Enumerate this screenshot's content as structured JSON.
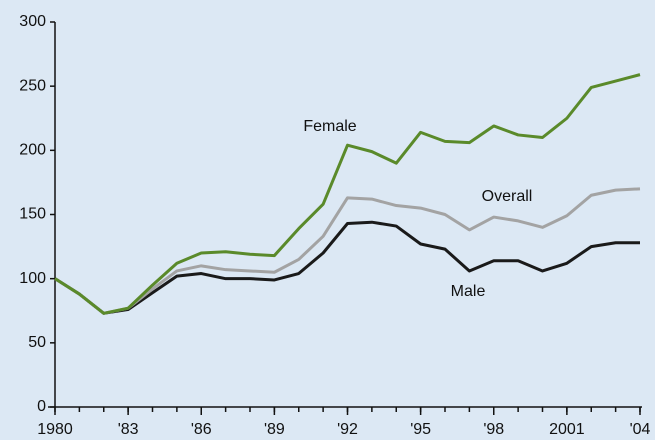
{
  "chart_data": {
    "type": "line",
    "x": [
      1980,
      1981,
      1982,
      1983,
      1984,
      1985,
      1986,
      1987,
      1988,
      1989,
      1990,
      1991,
      1992,
      1993,
      1994,
      1995,
      1996,
      1997,
      1998,
      1999,
      2000,
      2001,
      2002,
      2003,
      2004
    ],
    "series": [
      {
        "name": "Female",
        "color": "#5a8a2a",
        "values": [
          100,
          88,
          73,
          77,
          95,
          112,
          120,
          121,
          119,
          118,
          139,
          158,
          204,
          199,
          190,
          214,
          207,
          206,
          219,
          212,
          210,
          225,
          249,
          254,
          259
        ]
      },
      {
        "name": "Overall",
        "color": "#a3a3a3",
        "values": [
          100,
          88,
          73,
          77,
          92,
          106,
          110,
          107,
          106,
          105,
          115,
          133,
          163,
          162,
          157,
          155,
          150,
          138,
          148,
          145,
          140,
          149,
          165,
          169,
          170
        ]
      },
      {
        "name": "Male",
        "color": "#1a1a1a",
        "values": [
          100,
          88,
          73,
          76,
          89,
          102,
          104,
          100,
          100,
          99,
          104,
          120,
          143,
          144,
          141,
          127,
          123,
          106,
          114,
          114,
          106,
          112,
          125,
          128,
          128
        ]
      }
    ],
    "xlim": [
      1980,
      2004
    ],
    "xticks": [
      1980,
      {
        "value": 1983,
        "label": "'83"
      },
      {
        "value": 1986,
        "label": "'86"
      },
      {
        "value": 1989,
        "label": "'89"
      },
      {
        "value": 1992,
        "label": "'92"
      },
      {
        "value": 1995,
        "label": "'95"
      },
      {
        "value": 1998,
        "label": "'98"
      },
      2001,
      {
        "value": 2004,
        "label": "'04"
      }
    ],
    "ylim": [
      0,
      300
    ],
    "yticks": [
      0,
      50,
      100,
      150,
      200,
      250,
      300
    ]
  }
}
